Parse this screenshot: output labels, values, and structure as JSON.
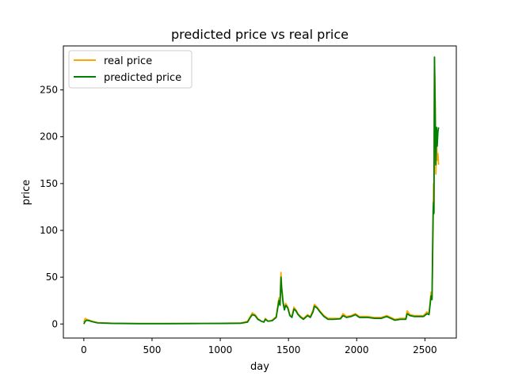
{
  "chart_data": {
    "type": "line",
    "title": "predicted price vs real price",
    "xlabel": "day",
    "ylabel": "price",
    "xlim": [
      -150,
      2730
    ],
    "ylim": [
      -15,
      297
    ],
    "xticks": [
      0,
      500,
      1000,
      1500,
      2000,
      2500
    ],
    "yticks": [
      0,
      50,
      100,
      150,
      200,
      250
    ],
    "grid": false,
    "legend_position": "top-left",
    "series": [
      {
        "name": "real price",
        "color": "#ffa500",
        "points": [
          [
            0,
            2
          ],
          [
            10,
            6
          ],
          [
            20,
            5
          ],
          [
            40,
            4
          ],
          [
            60,
            3
          ],
          [
            100,
            1.5
          ],
          [
            200,
            0.8
          ],
          [
            400,
            0.5
          ],
          [
            600,
            0.5
          ],
          [
            800,
            0.6
          ],
          [
            1000,
            0.7
          ],
          [
            1150,
            1
          ],
          [
            1200,
            3
          ],
          [
            1220,
            8
          ],
          [
            1235,
            12
          ],
          [
            1255,
            10
          ],
          [
            1275,
            6
          ],
          [
            1300,
            3
          ],
          [
            1320,
            2
          ],
          [
            1330,
            6
          ],
          [
            1350,
            3
          ],
          [
            1380,
            4
          ],
          [
            1410,
            8
          ],
          [
            1430,
            28
          ],
          [
            1438,
            22
          ],
          [
            1445,
            55
          ],
          [
            1450,
            40
          ],
          [
            1460,
            25
          ],
          [
            1470,
            16
          ],
          [
            1480,
            22
          ],
          [
            1495,
            18
          ],
          [
            1510,
            10
          ],
          [
            1525,
            8
          ],
          [
            1540,
            18
          ],
          [
            1555,
            15
          ],
          [
            1570,
            11
          ],
          [
            1590,
            8
          ],
          [
            1610,
            6
          ],
          [
            1640,
            10
          ],
          [
            1660,
            8
          ],
          [
            1680,
            15
          ],
          [
            1690,
            21
          ],
          [
            1710,
            18
          ],
          [
            1730,
            14
          ],
          [
            1760,
            9
          ],
          [
            1790,
            6
          ],
          [
            1830,
            6
          ],
          [
            1880,
            6
          ],
          [
            1900,
            11
          ],
          [
            1925,
            8
          ],
          [
            1960,
            9
          ],
          [
            1990,
            11
          ],
          [
            2020,
            8
          ],
          [
            2080,
            8
          ],
          [
            2130,
            7
          ],
          [
            2180,
            7
          ],
          [
            2220,
            9
          ],
          [
            2250,
            7
          ],
          [
            2280,
            5
          ],
          [
            2320,
            6
          ],
          [
            2360,
            6
          ],
          [
            2370,
            14
          ],
          [
            2390,
            10
          ],
          [
            2420,
            9
          ],
          [
            2450,
            9
          ],
          [
            2490,
            9
          ],
          [
            2515,
            13
          ],
          [
            2530,
            11
          ],
          [
            2545,
            34
          ],
          [
            2552,
            28
          ],
          [
            2560,
            100
          ],
          [
            2563,
            150
          ],
          [
            2566,
            120
          ],
          [
            2570,
            285
          ],
          [
            2575,
            240
          ],
          [
            2580,
            160
          ],
          [
            2585,
            200
          ],
          [
            2590,
            175
          ],
          [
            2595,
            182
          ],
          [
            2600,
            170
          ]
        ]
      },
      {
        "name": "predicted price",
        "color": "#008000",
        "points": [
          [
            0,
            0
          ],
          [
            10,
            3
          ],
          [
            20,
            4
          ],
          [
            40,
            3.5
          ],
          [
            60,
            2.5
          ],
          [
            100,
            1.2
          ],
          [
            200,
            0.7
          ],
          [
            400,
            0.4
          ],
          [
            600,
            0.4
          ],
          [
            800,
            0.5
          ],
          [
            1000,
            0.6
          ],
          [
            1150,
            0.8
          ],
          [
            1200,
            2
          ],
          [
            1220,
            7
          ],
          [
            1235,
            10
          ],
          [
            1255,
            9
          ],
          [
            1275,
            5
          ],
          [
            1300,
            3
          ],
          [
            1320,
            2
          ],
          [
            1330,
            5
          ],
          [
            1350,
            3
          ],
          [
            1380,
            3.5
          ],
          [
            1410,
            7
          ],
          [
            1430,
            25
          ],
          [
            1438,
            20
          ],
          [
            1445,
            50
          ],
          [
            1450,
            38
          ],
          [
            1460,
            23
          ],
          [
            1470,
            15
          ],
          [
            1480,
            20
          ],
          [
            1495,
            17
          ],
          [
            1510,
            9
          ],
          [
            1525,
            7
          ],
          [
            1540,
            16
          ],
          [
            1555,
            14
          ],
          [
            1570,
            10
          ],
          [
            1590,
            7
          ],
          [
            1610,
            5
          ],
          [
            1640,
            9
          ],
          [
            1660,
            7
          ],
          [
            1680,
            13
          ],
          [
            1690,
            19
          ],
          [
            1710,
            17
          ],
          [
            1730,
            13
          ],
          [
            1760,
            8
          ],
          [
            1790,
            5
          ],
          [
            1830,
            5
          ],
          [
            1880,
            5.5
          ],
          [
            1900,
            9
          ],
          [
            1925,
            7
          ],
          [
            1960,
            8
          ],
          [
            1990,
            10
          ],
          [
            2020,
            7
          ],
          [
            2080,
            7
          ],
          [
            2130,
            6
          ],
          [
            2180,
            6
          ],
          [
            2220,
            8
          ],
          [
            2250,
            6
          ],
          [
            2280,
            4
          ],
          [
            2320,
            5
          ],
          [
            2360,
            5
          ],
          [
            2370,
            11
          ],
          [
            2390,
            9
          ],
          [
            2420,
            8
          ],
          [
            2450,
            8
          ],
          [
            2490,
            8
          ],
          [
            2515,
            11
          ],
          [
            2530,
            10
          ],
          [
            2545,
            30
          ],
          [
            2552,
            26
          ],
          [
            2560,
            120
          ],
          [
            2563,
            130
          ],
          [
            2566,
            118
          ],
          [
            2570,
            285
          ],
          [
            2575,
            230
          ],
          [
            2580,
            170
          ],
          [
            2585,
            210
          ],
          [
            2590,
            190
          ],
          [
            2595,
            205
          ],
          [
            2600,
            210
          ]
        ]
      }
    ]
  }
}
